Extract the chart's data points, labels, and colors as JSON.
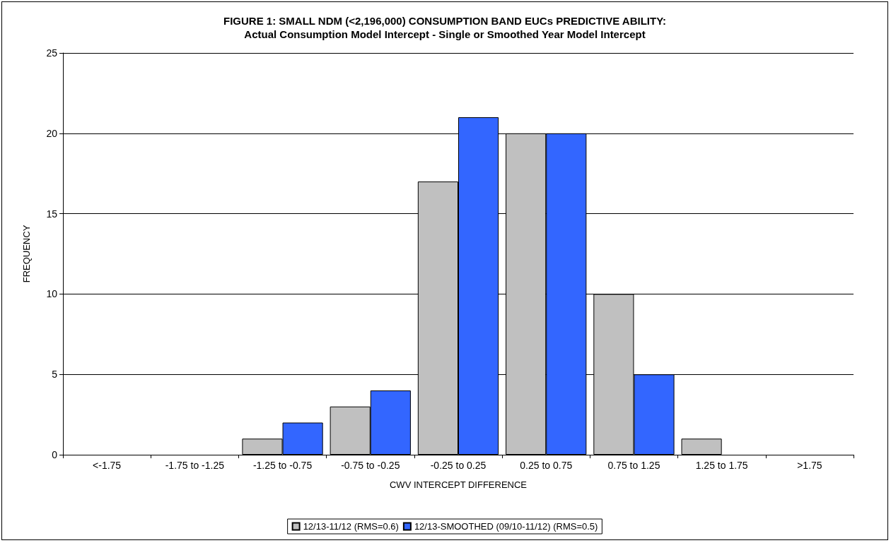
{
  "chart_data": {
    "type": "bar",
    "title": "FIGURE 1: SMALL NDM (<2,196,000) CONSUMPTION BAND EUCs PREDICTIVE ABILITY:",
    "subtitle": "Actual Consumption Model Intercept - Single or Smoothed Year Model Intercept",
    "xlabel": "CWV INTERCEPT DIFFERENCE",
    "ylabel": "FREQUENCY",
    "categories": [
      "<-1.75",
      "-1.75 to -1.25",
      "-1.25 to -0.75",
      "-0.75 to -0.25",
      "-0.25 to 0.25",
      "0.25 to 0.75",
      "0.75 to 1.25",
      "1.25 to 1.75",
      ">1.75"
    ],
    "series": [
      {
        "name": "12/13-11/12 (RMS=0.6)",
        "color": "#c0c0c0",
        "values": [
          0,
          0,
          1,
          3,
          17,
          20,
          10,
          1,
          0
        ]
      },
      {
        "name": "12/13-SMOOTHED (09/10-11/12) (RMS=0.5)",
        "color": "#3366ff",
        "values": [
          0,
          0,
          2,
          4,
          21,
          20,
          5,
          0,
          0
        ]
      }
    ],
    "ylim": [
      0,
      25
    ],
    "yticks": [
      0,
      5,
      10,
      15,
      20,
      25
    ],
    "grid": "y",
    "legend": "bottom"
  }
}
